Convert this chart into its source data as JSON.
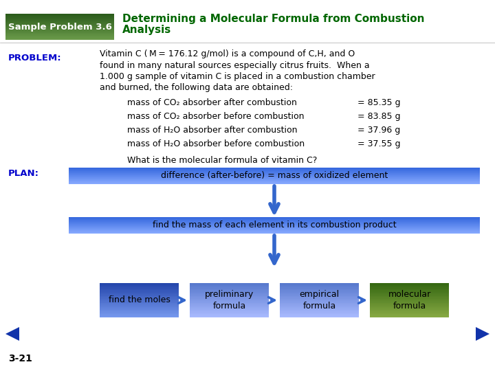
{
  "title_box_text": "Sample Problem 3.6",
  "title_box_bg_top": "#6a9a4a",
  "title_box_bg_bot": "#2a5a1a",
  "title_text_line1": "Determining a Molecular Formula from Combustion",
  "title_text_line2": "Analysis",
  "title_color": "#006600",
  "problem_label": "PROBLEM:",
  "problem_label_color": "#0000cc",
  "problem_lines": [
    "Vitamin C ( M = 176.12 g/mol) is a compound of C,H, and O",
    "found in many natural sources especially citrus fruits.  When a",
    "1.000 g sample of vitamin C is placed in a combustion chamber",
    "and burned, the following data are obtained:"
  ],
  "data_lines": [
    [
      "mass of CO₂ absorber after combustion",
      "= 85.35 g"
    ],
    [
      "mass of CO₂ absorber before combustion",
      "= 83.85 g"
    ],
    [
      "mass of H₂O absorber after combustion",
      "= 37.96 g"
    ],
    [
      "mass of H₂O absorber before combustion",
      "= 37.55 g"
    ]
  ],
  "question": "What is the molecular formula of vitamin C?",
  "plan_label": "PLAN:",
  "plan_label_color": "#0000cc",
  "box1_text": "difference (after-before) = mass of oxidized element",
  "box2_text": "find the mass of each element in its combustion product",
  "box_blue_bg": "#5588ee",
  "box_blue_border": "#3366cc",
  "flow_boxes": [
    {
      "text": "find the moles",
      "bg_top": "#7799ee",
      "bg_bot": "#2244aa"
    },
    {
      "text": "preliminary\nformula",
      "bg_top": "#aabbff",
      "bg_bot": "#5577cc"
    },
    {
      "text": "empirical\nformula",
      "bg_top": "#aabbff",
      "bg_bot": "#5577cc"
    },
    {
      "text": "molecular\nformula",
      "bg_top": "#88aa44",
      "bg_bot": "#336611"
    }
  ],
  "arrow_color": "#3366cc",
  "bg_color": "#ffffff",
  "page_num": "3-21",
  "nav_color": "#1133aa"
}
